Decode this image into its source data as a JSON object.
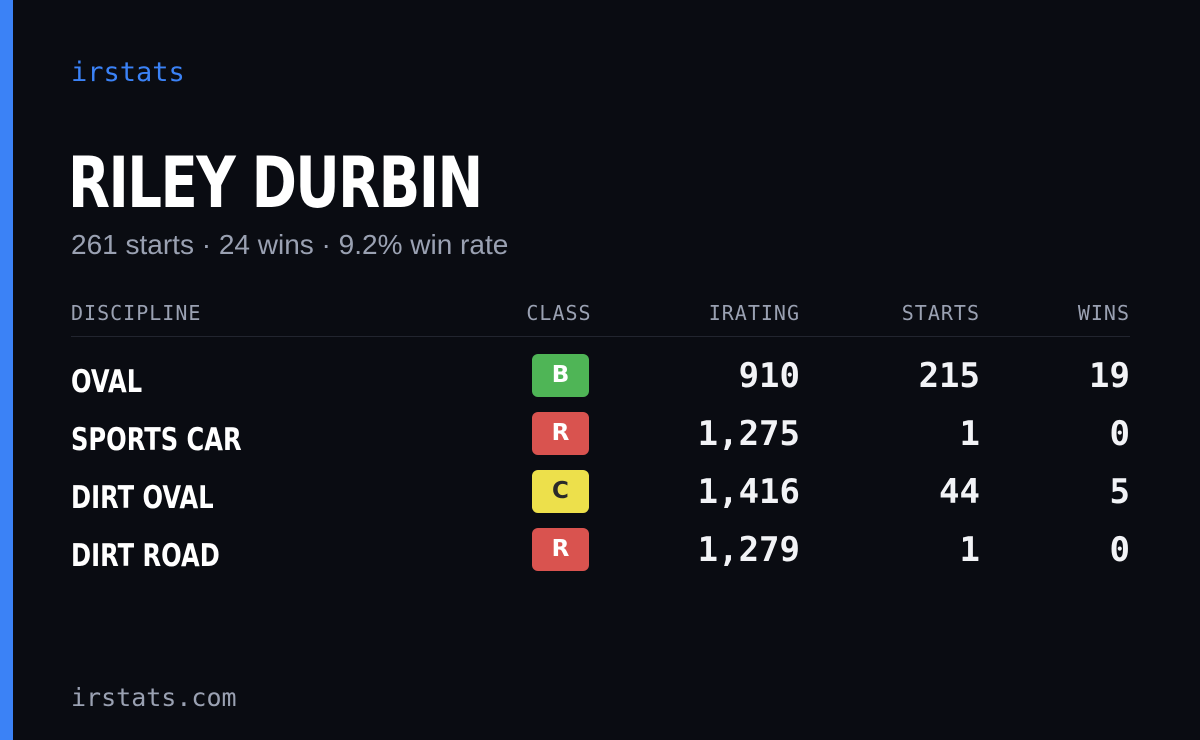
{
  "brand": {
    "name": "irstats"
  },
  "profile": {
    "name": "RILEY DURBIN",
    "summary": "261 starts · 24 wins · 9.2% win rate"
  },
  "table": {
    "headers": {
      "discipline": "DISCIPLINE",
      "class": "CLASS",
      "irating": "IRATING",
      "starts": "STARTS",
      "wins": "WINS"
    },
    "rows": [
      {
        "discipline": "OVAL",
        "class": "B",
        "class_color": "#4fb556",
        "class_text_color": "#ffffff",
        "irating": "910",
        "starts": "215",
        "wins": "19"
      },
      {
        "discipline": "SPORTS CAR",
        "class": "R",
        "class_color": "#d9534f",
        "class_text_color": "#ffffff",
        "irating": "1,275",
        "starts": "1",
        "wins": "0"
      },
      {
        "discipline": "DIRT OVAL",
        "class": "C",
        "class_color": "#ede04b",
        "class_text_color": "#2a2a2a",
        "irating": "1,416",
        "starts": "44",
        "wins": "5"
      },
      {
        "discipline": "DIRT ROAD",
        "class": "R",
        "class_color": "#d9534f",
        "class_text_color": "#ffffff",
        "irating": "1,279",
        "starts": "1",
        "wins": "0"
      }
    ]
  },
  "footer": {
    "domain": "irstats.com"
  },
  "colors": {
    "background": "#0a0c12",
    "accent": "#3b82f6",
    "muted_text": "#9aa1b2"
  }
}
